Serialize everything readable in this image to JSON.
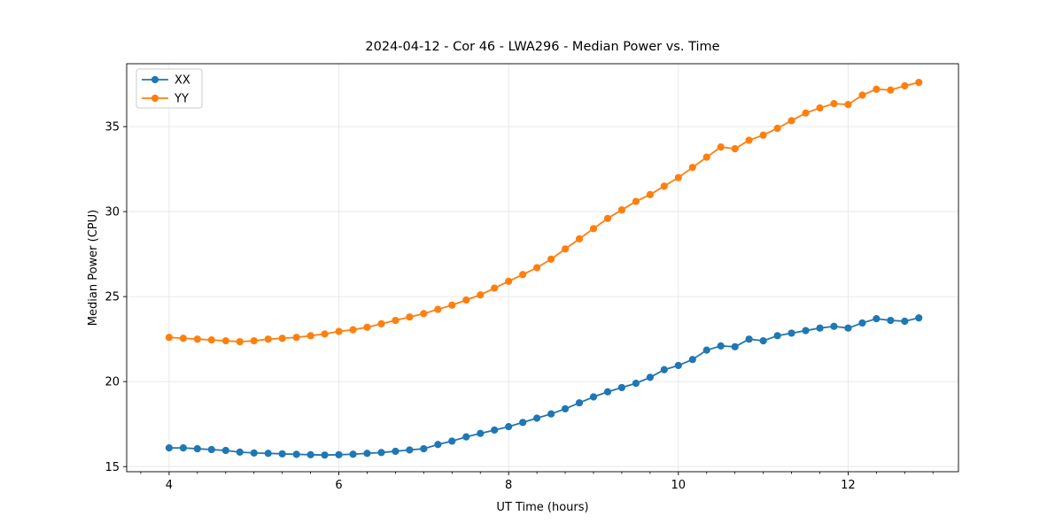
{
  "title": "2024-04-12 - Cor 46 - LWA296 - Median Power vs. Time",
  "chart_data": {
    "type": "line",
    "title": "2024-04-12 - Cor 46 - LWA296 - Median Power vs. Time",
    "xlabel": "UT Time (hours)",
    "ylabel": "Median Power (CPU)",
    "xlim": [
      3.5,
      13.3
    ],
    "ylim": [
      14.7,
      38.7
    ],
    "xticks": [
      4,
      6,
      8,
      10,
      12
    ],
    "yticks": [
      15,
      20,
      25,
      30,
      35
    ],
    "minor_xtick_step": 0.33333,
    "grid": true,
    "grid_color": "#e7e7e7",
    "legend_position": "upper-left",
    "legend_items": [
      "XX",
      "YY"
    ],
    "x": [
      4.0,
      4.167,
      4.333,
      4.5,
      4.667,
      4.833,
      5.0,
      5.167,
      5.333,
      5.5,
      5.667,
      5.833,
      6.0,
      6.167,
      6.333,
      6.5,
      6.667,
      6.833,
      7.0,
      7.167,
      7.333,
      7.5,
      7.667,
      7.833,
      8.0,
      8.167,
      8.333,
      8.5,
      8.667,
      8.833,
      9.0,
      9.167,
      9.333,
      9.5,
      9.667,
      9.833,
      10.0,
      10.167,
      10.333,
      10.5,
      10.667,
      10.833,
      11.0,
      11.167,
      11.333,
      11.5,
      11.667,
      11.833,
      12.0,
      12.167,
      12.333,
      12.5,
      12.667,
      12.833
    ],
    "series": [
      {
        "name": "XX",
        "color": "#1f77b4",
        "values": [
          16.1,
          16.1,
          16.05,
          16.0,
          15.95,
          15.85,
          15.8,
          15.78,
          15.75,
          15.72,
          15.7,
          15.68,
          15.7,
          15.73,
          15.78,
          15.83,
          15.9,
          15.98,
          16.05,
          16.3,
          16.5,
          16.75,
          16.95,
          17.15,
          17.35,
          17.6,
          17.85,
          18.1,
          18.4,
          18.75,
          19.1,
          19.4,
          19.65,
          19.9,
          20.25,
          20.7,
          20.95,
          21.3,
          21.85,
          22.1,
          22.05,
          22.5,
          22.4,
          22.7,
          22.85,
          23.0,
          23.15,
          23.25,
          23.15,
          23.45,
          23.7,
          23.6,
          23.55,
          23.75
        ]
      },
      {
        "name": "YY",
        "color": "#ff7f0e",
        "values": [
          22.6,
          22.55,
          22.5,
          22.45,
          22.4,
          22.35,
          22.4,
          22.5,
          22.55,
          22.6,
          22.7,
          22.8,
          22.95,
          23.05,
          23.2,
          23.4,
          23.6,
          23.8,
          24.0,
          24.25,
          24.5,
          24.8,
          25.1,
          25.5,
          25.9,
          26.3,
          26.7,
          27.2,
          27.8,
          28.4,
          29.0,
          29.6,
          30.1,
          30.6,
          31.0,
          31.5,
          32.0,
          32.6,
          33.2,
          33.8,
          33.7,
          34.2,
          34.5,
          34.9,
          35.35,
          35.8,
          36.1,
          36.35,
          36.3,
          36.85,
          37.2,
          37.15,
          37.4,
          37.6
        ]
      }
    ]
  },
  "style": {
    "spine_color": "#000000",
    "marker_radius": 4.1,
    "line_width": 1.8,
    "legend_border_color": "#cccccc",
    "background": "#ffffff"
  }
}
